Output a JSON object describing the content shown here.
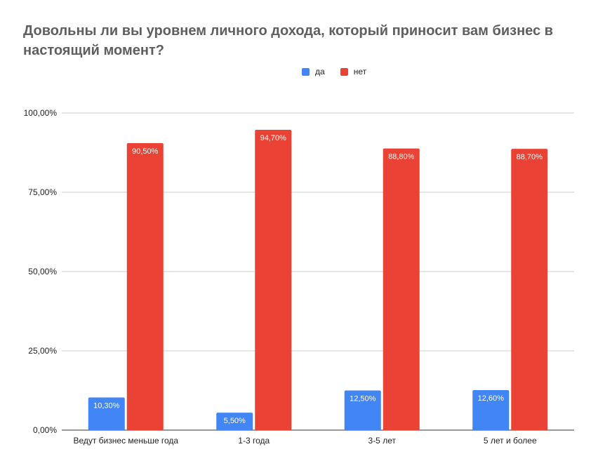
{
  "title": "Довольны ли вы уровнем личного дохода, который приносит вам бизнес в настоящий момент?",
  "legend": [
    {
      "name": "да",
      "color": "#4285f4"
    },
    {
      "name": "нет",
      "color": "#ea4335"
    }
  ],
  "chart_data": {
    "type": "bar",
    "title": "Довольны ли вы уровнем личного дохода, который приносит вам бизнес в настоящий момент?",
    "categories": [
      "Ведут бизнес меньше года",
      "1-3 года",
      "3-5 лет",
      "5 лет и более"
    ],
    "series": [
      {
        "name": "да",
        "color": "#4285f4",
        "values": [
          10.3,
          5.5,
          12.5,
          12.6
        ],
        "labels": [
          "10,30%",
          "5,50%",
          "12,50%",
          "12,60%"
        ]
      },
      {
        "name": "нет",
        "color": "#ea4335",
        "values": [
          90.5,
          94.7,
          88.8,
          88.7
        ],
        "labels": [
          "90,50%",
          "94,70%",
          "88,80%",
          "88,70%"
        ]
      }
    ],
    "ylim": [
      0,
      100
    ],
    "yticks": [
      0,
      25,
      50,
      75,
      100
    ],
    "ytick_labels": [
      "0,00%",
      "25,00%",
      "50,00%",
      "75,00%",
      "100,00%"
    ],
    "grid": true,
    "legend_position": "top-center",
    "xlabel": "",
    "ylabel": ""
  }
}
